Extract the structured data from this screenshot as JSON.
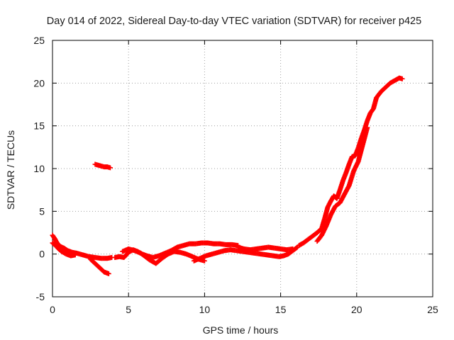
{
  "chart_data": {
    "type": "scatter",
    "title": "Day 014 of 2022, Sidereal Day-to-day VTEC variation (SDTVAR) for receiver p425",
    "xlabel": "GPS time / hours",
    "ylabel": "SDTVAR / TECUs",
    "xlim": [
      0,
      25
    ],
    "ylim": [
      -5,
      25
    ],
    "xticks": [
      "0",
      "5",
      "10",
      "15",
      "20",
      "25"
    ],
    "yticks": [
      "-5",
      "0",
      "5",
      "10",
      "15",
      "20",
      "25"
    ],
    "grid": true,
    "marker": "+",
    "color": "#ff0000",
    "series": [
      {
        "name": "SDTVAR",
        "segments": [
          {
            "x": [
              0.0,
              0.15,
              0.3,
              0.5,
              0.75,
              1.0,
              1.3,
              1.6,
              2.0,
              2.4,
              2.8,
              3.2,
              3.6,
              3.9
            ],
            "y": [
              2.2,
              1.8,
              1.3,
              0.9,
              0.7,
              0.4,
              0.2,
              0.1,
              -0.1,
              -0.3,
              -0.4,
              -0.5,
              -0.5,
              -0.4
            ]
          },
          {
            "x": [
              0.0,
              0.2,
              0.4,
              0.6,
              0.9,
              1.2,
              1.5
            ],
            "y": [
              1.3,
              1.0,
              0.6,
              0.3,
              0.0,
              -0.2,
              -0.1
            ]
          },
          {
            "x": [
              2.5,
              2.8,
              3.1,
              3.4,
              3.7
            ],
            "y": [
              -0.6,
              -1.1,
              -1.6,
              -2.1,
              -2.3
            ]
          },
          {
            "x": [
              2.8,
              3.0,
              3.2,
              3.4,
              3.6,
              3.8
            ],
            "y": [
              10.5,
              10.4,
              10.3,
              10.2,
              10.2,
              10.1
            ]
          },
          {
            "x": [
              4.1,
              4.4,
              4.7,
              5.0,
              5.3,
              5.6,
              5.9,
              6.2,
              6.6,
              7.0,
              7.4,
              7.8,
              8.2,
              8.6,
              9.0,
              9.4,
              9.8,
              10.2,
              10.6,
              11.0,
              11.4,
              11.8,
              12.2
            ],
            "y": [
              -0.4,
              -0.3,
              -0.4,
              0.2,
              0.5,
              0.3,
              0.0,
              -0.2,
              -0.4,
              -0.2,
              0.1,
              0.4,
              0.8,
              1.0,
              1.2,
              1.2,
              1.3,
              1.3,
              1.2,
              1.2,
              1.1,
              1.1,
              1.0
            ]
          },
          {
            "x": [
              4.6,
              5.0,
              5.4,
              5.8,
              6.1,
              6.4,
              6.8,
              7.2,
              7.6,
              8.0,
              8.4,
              8.8,
              9.2,
              9.6,
              10.0
            ],
            "y": [
              0.3,
              0.6,
              0.4,
              0.1,
              -0.3,
              -0.7,
              -1.1,
              -0.5,
              0.0,
              0.3,
              0.2,
              0.0,
              -0.3,
              -0.6,
              -0.8
            ]
          },
          {
            "x": [
              9.3,
              9.7,
              10.1,
              10.5,
              10.9,
              11.3,
              11.7,
              12.1,
              12.5,
              12.9,
              13.3,
              13.7,
              14.1,
              14.5,
              14.9,
              15.2,
              15.5,
              15.8,
              16.1
            ],
            "y": [
              -0.8,
              -0.5,
              -0.2,
              0.0,
              0.2,
              0.4,
              0.5,
              0.4,
              0.3,
              0.2,
              0.1,
              0.0,
              -0.1,
              -0.2,
              -0.3,
              -0.2,
              0.0,
              0.4,
              0.8
            ]
          },
          {
            "x": [
              12.2,
              12.6,
              13.0,
              13.4,
              13.8,
              14.2,
              14.6,
              15.0,
              15.4,
              15.8
            ],
            "y": [
              0.8,
              0.6,
              0.5,
              0.6,
              0.7,
              0.8,
              0.7,
              0.6,
              0.5,
              0.6
            ]
          },
          {
            "x": [
              16.2,
              16.5,
              16.8,
              17.1,
              17.4,
              17.7,
              17.9,
              18.1,
              18.3,
              18.5,
              18.7,
              18.9,
              19.1,
              19.3,
              19.5,
              19.7,
              19.9,
              20.1,
              20.3,
              20.5,
              20.7,
              20.9,
              21.1,
              21.3,
              21.6,
              21.9,
              22.2,
              22.5,
              22.8,
              23.0
            ],
            "y": [
              1.0,
              1.3,
              1.7,
              2.1,
              2.5,
              3.0,
              4.2,
              5.5,
              6.2,
              6.8,
              6.5,
              7.5,
              8.6,
              9.5,
              10.5,
              11.4,
              11.5,
              12.4,
              13.5,
              14.5,
              15.6,
              16.5,
              17.0,
              18.3,
              19.0,
              19.5,
              20.0,
              20.3,
              20.6,
              20.5
            ]
          },
          {
            "x": [
              17.4,
              17.7,
              18.0,
              18.3,
              18.6,
              18.9,
              19.2,
              19.5,
              19.8,
              20.1,
              20.4,
              20.7
            ],
            "y": [
              1.5,
              2.2,
              3.3,
              4.6,
              5.6,
              6.0,
              7.0,
              8.0,
              9.7,
              10.8,
              12.8,
              14.8
            ]
          }
        ]
      }
    ]
  }
}
